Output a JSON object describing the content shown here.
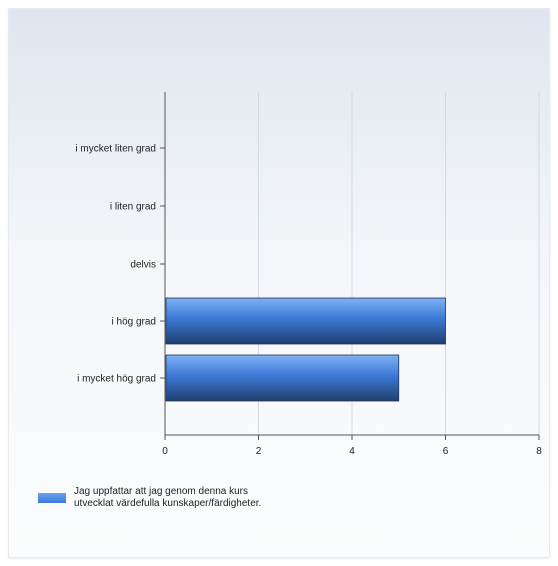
{
  "chart_data": {
    "type": "bar",
    "orientation": "horizontal",
    "categories": [
      "i mycket liten grad",
      "i liten grad",
      "delvis",
      "i hög grad",
      "i mycket hög grad"
    ],
    "series": [
      {
        "name": "Jag uppfattar att jag genom denna kurs utvecklat värdefulla kunskaper/färdigheter.",
        "values": [
          0,
          0,
          0,
          6,
          5
        ],
        "color": "#3b78d8"
      }
    ],
    "xlim": [
      0,
      8
    ],
    "xticks": [
      0,
      2,
      4,
      6,
      8
    ],
    "grid": true,
    "legend_position": "bottom-left",
    "title": "",
    "xlabel": "",
    "ylabel": ""
  },
  "legend": {
    "text": "Jag uppfattar att jag genom denna kurs utvecklat värdefulla kunskaper/färdigheter."
  }
}
